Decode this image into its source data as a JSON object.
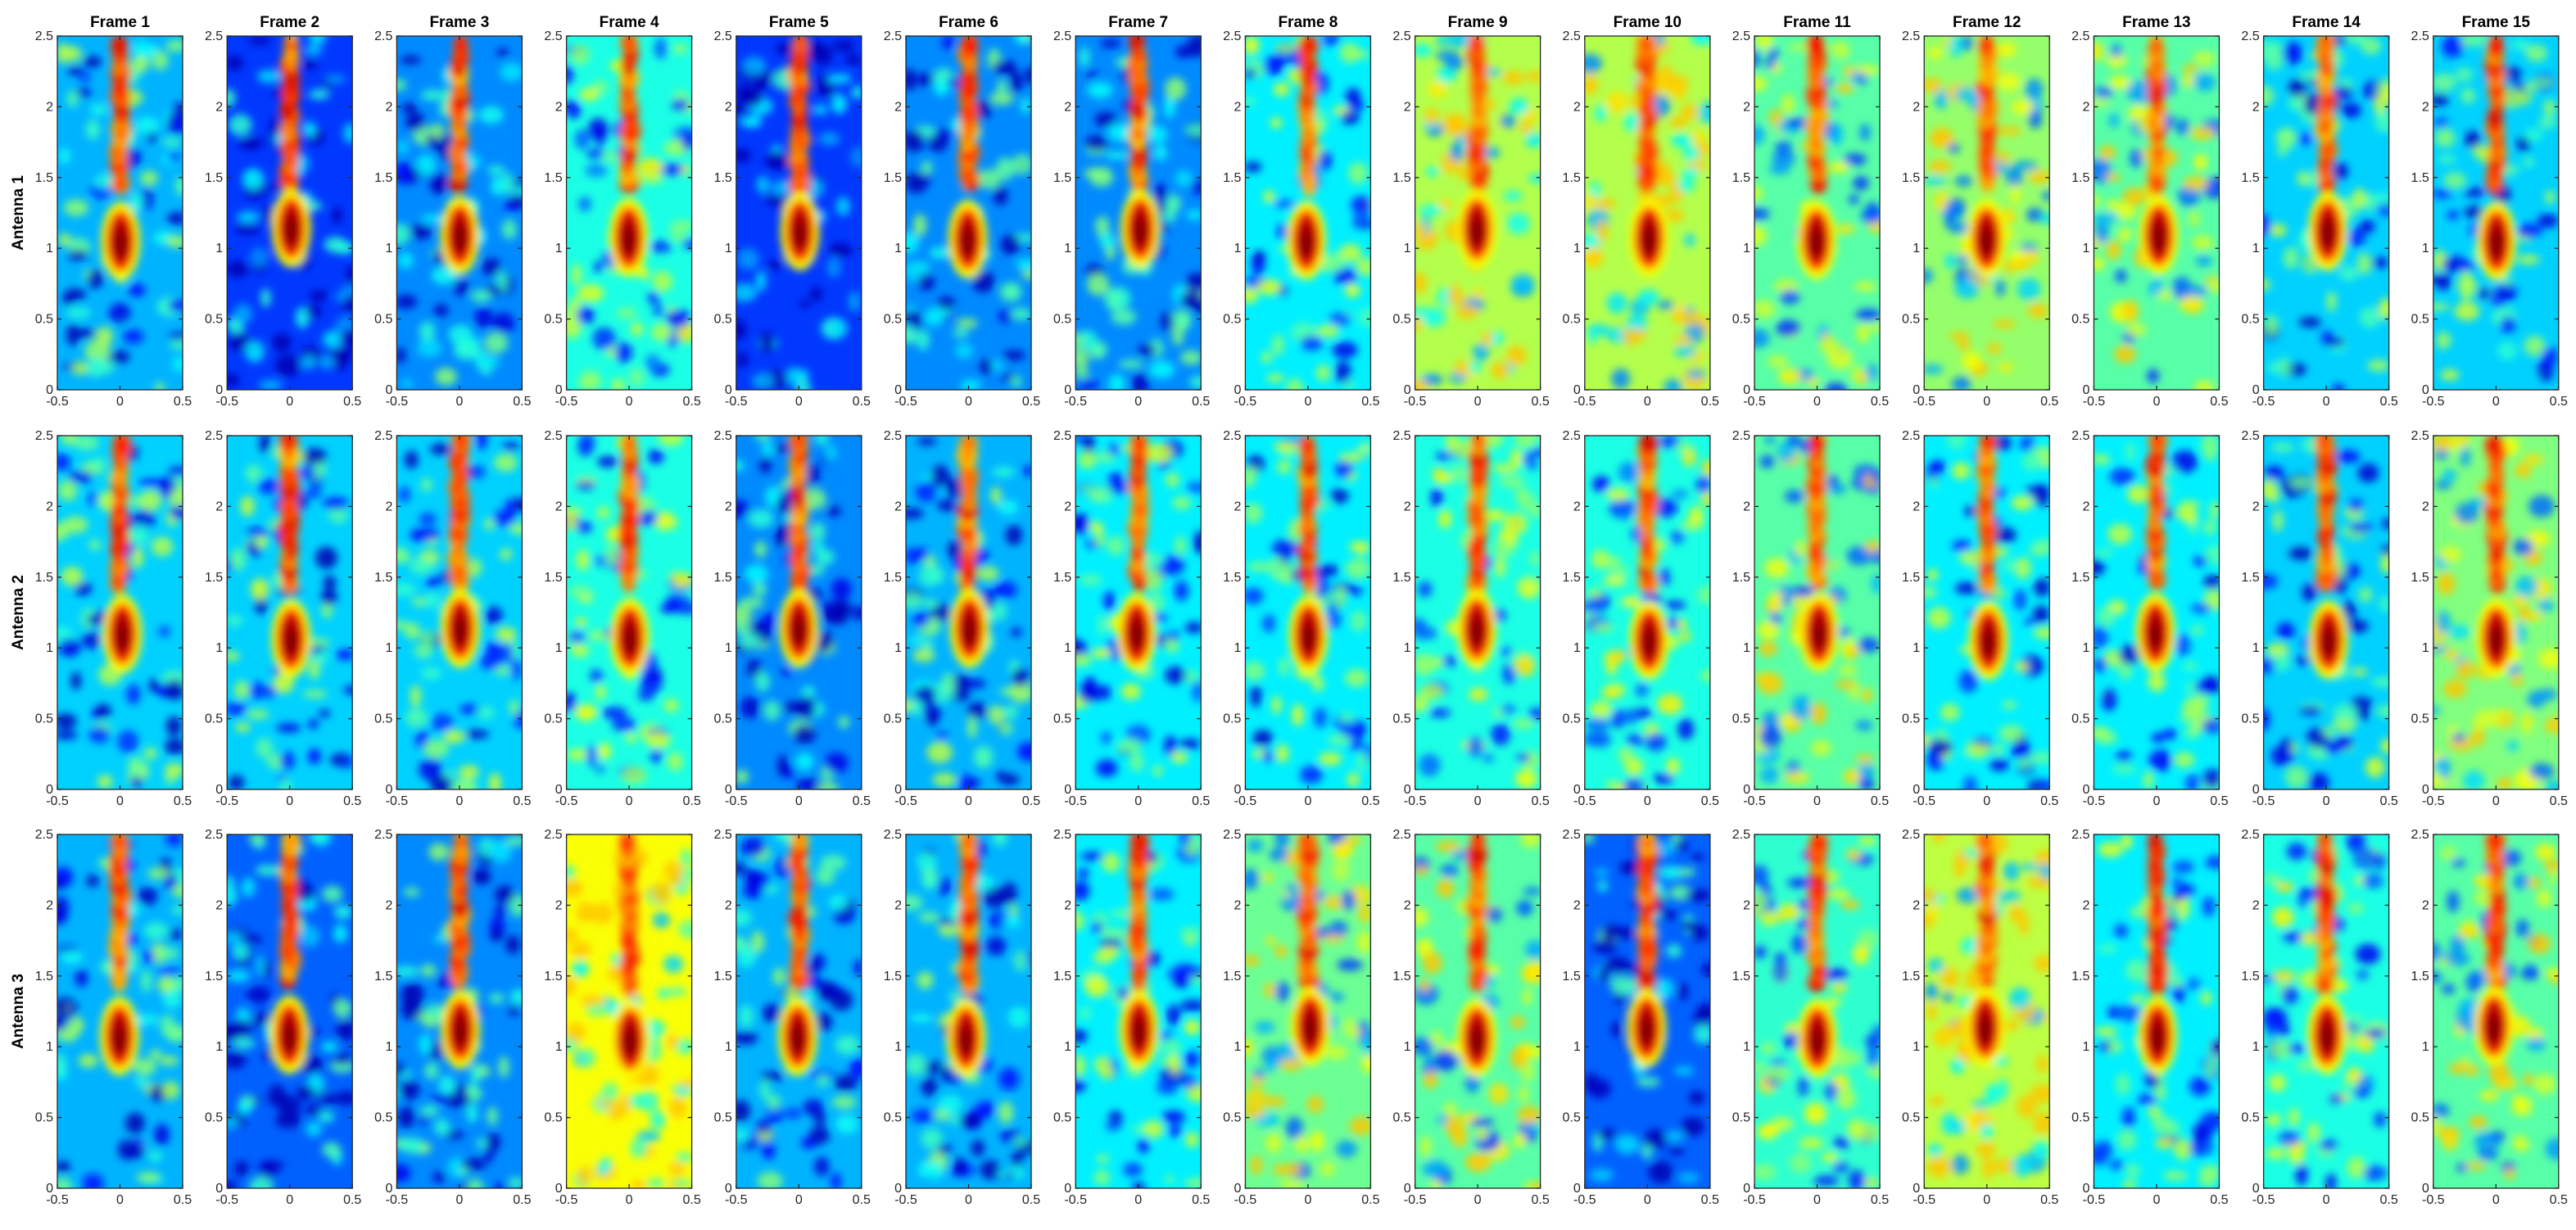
{
  "chart_data": {
    "type": "heatmap",
    "layout": {
      "rows": 3,
      "cols": 15
    },
    "column_titles": [
      "Frame 1",
      "Frame 2",
      "Frame 3",
      "Frame 4",
      "Frame 5",
      "Frame 6",
      "Frame 7",
      "Frame 8",
      "Frame 9",
      "Frame 10",
      "Frame 11",
      "Frame 12",
      "Frame 13",
      "Frame 14",
      "Frame 15"
    ],
    "row_labels": [
      "Antenna 1",
      "Antenna 2",
      "Antenna 3"
    ],
    "x_axis": {
      "lim": [
        -0.5,
        0.5
      ],
      "ticks": [
        -0.5,
        0,
        0.5
      ],
      "tick_labels": [
        "-0.5",
        "0",
        "0.5"
      ]
    },
    "y_axis": {
      "lim": [
        0,
        2.5
      ],
      "ticks": [
        0,
        0.5,
        1,
        1.5,
        2,
        2.5
      ],
      "tick_labels": [
        "0",
        "0.5",
        "1",
        "1.5",
        "2",
        "2.5"
      ]
    },
    "colormap": "jet",
    "colors": {
      "low": "#0000ff",
      "background": "#35e3c6",
      "mid": "#ffff00",
      "high": "#ff0000",
      "peak": "#a00000"
    },
    "hotspot": {
      "x_center": 0,
      "y_center_approx": 1.1,
      "description_series": "strong response centered near x=0, y~1.0-1.2, with a vertical streak extending to y=2.5"
    },
    "panel_background_level": [
      [
        0.3,
        0.18,
        0.26,
        0.4,
        0.18,
        0.26,
        0.26,
        0.36,
        0.55,
        0.55,
        0.46,
        0.52,
        0.46,
        0.33,
        0.33
      ],
      [
        0.33,
        0.33,
        0.33,
        0.4,
        0.26,
        0.3,
        0.36,
        0.36,
        0.4,
        0.4,
        0.46,
        0.36,
        0.36,
        0.33,
        0.5
      ],
      [
        0.3,
        0.22,
        0.26,
        0.62,
        0.3,
        0.3,
        0.36,
        0.48,
        0.46,
        0.22,
        0.42,
        0.56,
        0.36,
        0.4,
        0.46
      ]
    ]
  }
}
